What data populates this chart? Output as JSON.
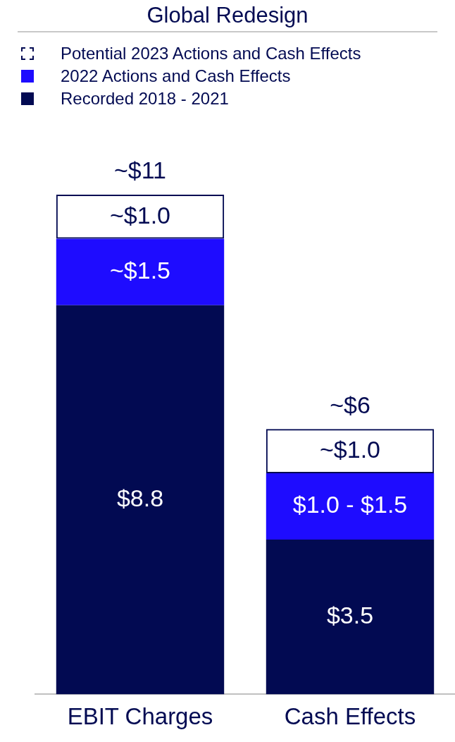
{
  "chart_data": {
    "type": "bar",
    "title": "Global Redesign",
    "stacked": true,
    "legend": "top left",
    "categories": [
      "EBIT Charges",
      "Cash Effects"
    ],
    "series": [
      {
        "name": "Recorded 2018 - 2021",
        "color": "#020a52",
        "values": [
          8.8,
          3.5
        ],
        "value_labels": [
          "$8.8",
          "$3.5"
        ]
      },
      {
        "name": "2022 Actions and Cash Effects",
        "color": "#1e0cff",
        "values": [
          1.5,
          1.5
        ],
        "value_labels": [
          "~$1.5",
          null
        ]
      },
      {
        "name": "Potential 2023 Actions and Cash Effects",
        "color": "#020a52",
        "line_style": "dashed",
        "values": [
          1.0,
          1.0
        ],
        "value_labels": [
          "~$1.0",
          "~$1.0"
        ]
      }
    ],
    "totals": [
      "~$11",
      "~$6"
    ],
    "annotations": [
      "$1.0 - $1.5"
    ]
  }
}
